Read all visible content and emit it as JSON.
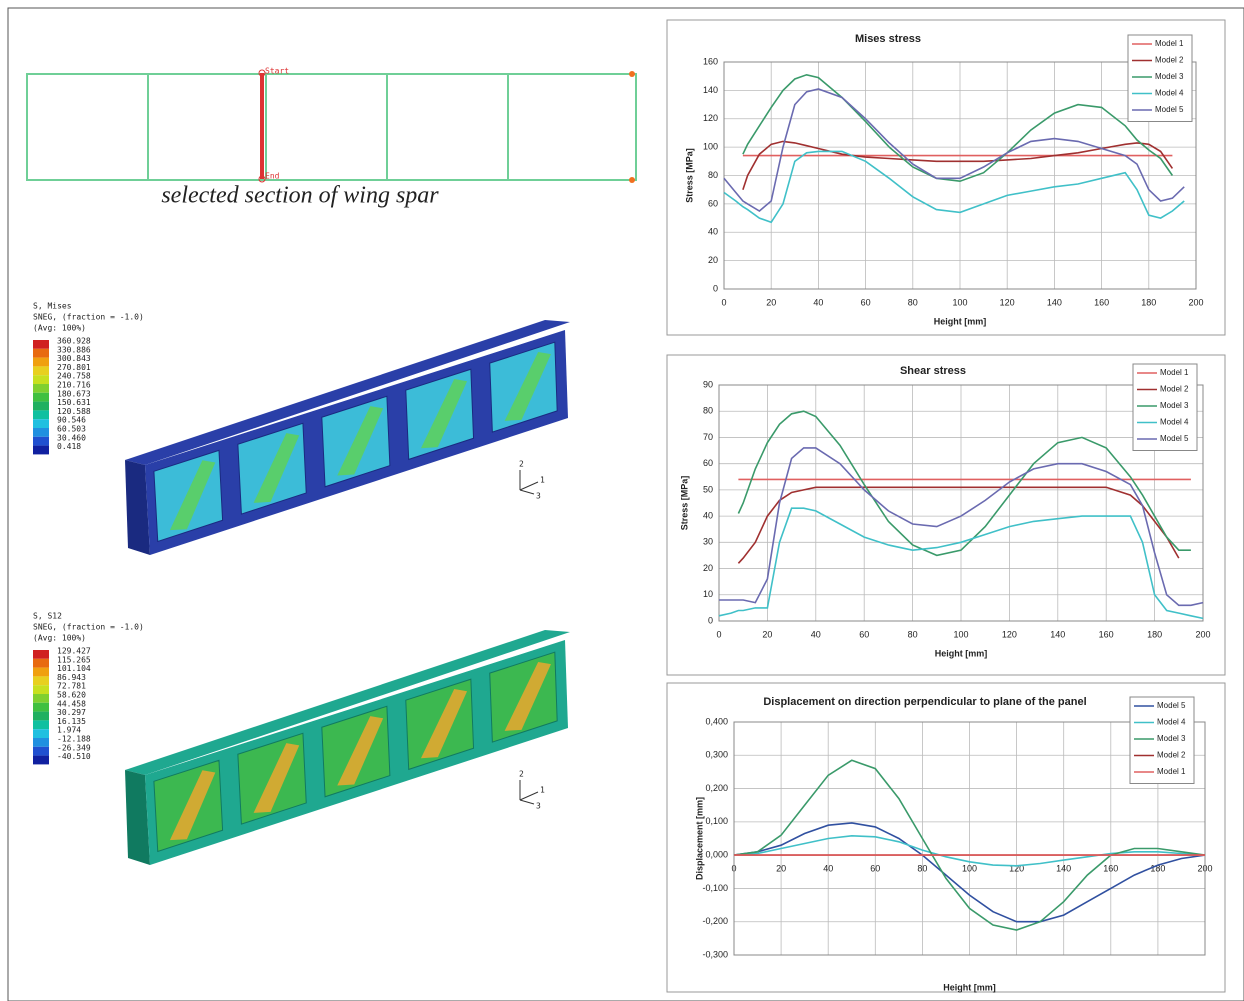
{
  "diagram": {
    "caption": "selected section of wing spar",
    "start_label": "Start",
    "end_label": "End"
  },
  "contours": [
    {
      "title": [
        "S, Mises",
        "SNEG, (fraction = -1.0)",
        "(Avg: 100%)"
      ],
      "levels": [
        "360.928",
        "330.886",
        "300.843",
        "270.801",
        "240.758",
        "210.716",
        "180.673",
        "150.631",
        "120.588",
        "90.546",
        "60.503",
        "30.460",
        "0.418"
      ],
      "axes": [
        "2",
        "1",
        "3"
      ]
    },
    {
      "title": [
        "S, S12",
        "SNEG, (fraction = -1.0)",
        "(Avg: 100%)"
      ],
      "levels": [
        "129.427",
        "115.265",
        "101.104",
        "86.943",
        "72.781",
        "58.620",
        "44.458",
        "30.297",
        "16.135",
        "1.974",
        "-12.188",
        "-26.349",
        "-40.510"
      ],
      "axes": [
        "2",
        "1",
        "3"
      ]
    }
  ],
  "chart_data": [
    {
      "type": "line",
      "title": "Mises stress",
      "xlabel": "Height [mm]",
      "ylabel": "Stress [MPa]",
      "x": [
        0,
        5,
        8,
        10,
        15,
        20,
        25,
        30,
        35,
        40,
        50,
        60,
        70,
        80,
        90,
        100,
        110,
        120,
        130,
        140,
        150,
        160,
        170,
        175,
        180,
        185,
        190,
        195
      ],
      "series": [
        {
          "name": "Model 1",
          "color": "#e06060",
          "values": [
            null,
            null,
            94,
            94,
            94,
            94,
            94,
            94,
            94,
            94,
            94,
            94,
            94,
            94,
            94,
            94,
            94,
            94,
            94,
            94,
            94,
            94,
            94,
            94,
            94,
            94,
            94,
            null
          ]
        },
        {
          "name": "Model 2",
          "color": "#a03030",
          "values": [
            null,
            null,
            70,
            80,
            95,
            102,
            104,
            103,
            101,
            99,
            95,
            93,
            92,
            91,
            90,
            90,
            90,
            91,
            92,
            94,
            96,
            99,
            102,
            103,
            102,
            97,
            85,
            null
          ]
        },
        {
          "name": "Model 3",
          "color": "#3a9a6a",
          "values": [
            null,
            null,
            95,
            102,
            115,
            128,
            140,
            148,
            151,
            149,
            135,
            118,
            100,
            86,
            78,
            76,
            82,
            96,
            112,
            124,
            130,
            128,
            115,
            105,
            98,
            92,
            80,
            null
          ]
        },
        {
          "name": "Model 4",
          "color": "#40c0c8",
          "values": [
            68,
            62,
            58,
            56,
            50,
            47,
            60,
            90,
            96,
            97,
            97,
            90,
            78,
            65,
            56,
            54,
            60,
            66,
            69,
            72,
            74,
            78,
            82,
            70,
            52,
            50,
            55,
            62
          ]
        },
        {
          "name": "Model 5",
          "color": "#6a6ab0",
          "values": [
            78,
            68,
            62,
            60,
            55,
            62,
            100,
            130,
            139,
            141,
            135,
            120,
            103,
            88,
            78,
            78,
            86,
            96,
            104,
            106,
            104,
            99,
            94,
            88,
            70,
            62,
            64,
            72
          ]
        }
      ],
      "xlim": [
        0,
        200
      ],
      "xticks": [
        0,
        20,
        40,
        60,
        80,
        100,
        120,
        140,
        160,
        180,
        200
      ],
      "ylim": [
        0,
        160
      ],
      "yticks": [
        0,
        20,
        40,
        60,
        80,
        100,
        120,
        140,
        160
      ],
      "grid": true,
      "legend": "upper right"
    },
    {
      "type": "line",
      "title": "Shear stress",
      "xlabel": "Height [mm]",
      "ylabel": "Stress [MPa]",
      "x": [
        0,
        5,
        8,
        10,
        15,
        20,
        25,
        30,
        35,
        40,
        50,
        60,
        70,
        80,
        90,
        100,
        110,
        120,
        130,
        140,
        150,
        160,
        170,
        175,
        180,
        185,
        190,
        195,
        200
      ],
      "series": [
        {
          "name": "Model 1",
          "color": "#e06060",
          "values": [
            null,
            null,
            54,
            54,
            54,
            54,
            54,
            54,
            54,
            54,
            54,
            54,
            54,
            54,
            54,
            54,
            54,
            54,
            54,
            54,
            54,
            54,
            54,
            54,
            54,
            54,
            54,
            54,
            null
          ]
        },
        {
          "name": "Model 2",
          "color": "#a03030",
          "values": [
            null,
            null,
            22,
            24,
            30,
            40,
            46,
            49,
            50,
            51,
            51,
            51,
            51,
            51,
            51,
            51,
            51,
            51,
            51,
            51,
            51,
            51,
            48,
            44,
            38,
            32,
            24,
            null,
            null
          ]
        },
        {
          "name": "Model 3",
          "color": "#3a9a6a",
          "values": [
            null,
            null,
            41,
            45,
            58,
            68,
            75,
            79,
            80,
            78,
            67,
            52,
            38,
            29,
            25,
            27,
            36,
            48,
            60,
            68,
            70,
            66,
            55,
            48,
            40,
            32,
            27,
            27,
            null
          ]
        },
        {
          "name": "Model 4",
          "color": "#40c0c8",
          "values": [
            2,
            3,
            4,
            4,
            5,
            5,
            30,
            43,
            43,
            42,
            37,
            32,
            29,
            27,
            28,
            30,
            33,
            36,
            38,
            39,
            40,
            40,
            40,
            30,
            10,
            4,
            3,
            2,
            1
          ]
        },
        {
          "name": "Model 5",
          "color": "#6a6ab0",
          "values": [
            8,
            8,
            8,
            8,
            7,
            16,
            45,
            62,
            66,
            66,
            60,
            50,
            42,
            37,
            36,
            40,
            46,
            53,
            58,
            60,
            60,
            57,
            52,
            44,
            26,
            10,
            6,
            6,
            7
          ]
        }
      ],
      "xlim": [
        0,
        200
      ],
      "xticks": [
        0,
        20,
        40,
        60,
        80,
        100,
        120,
        140,
        160,
        180,
        200
      ],
      "ylim": [
        0,
        90
      ],
      "yticks": [
        0,
        10,
        20,
        30,
        40,
        50,
        60,
        70,
        80,
        90
      ],
      "grid": true,
      "legend": "upper right"
    },
    {
      "type": "line",
      "title": "Displacement on direction perpendicular to plane of  the panel",
      "xlabel": "Height [mm]",
      "ylabel": "Displacement [mm]",
      "x": [
        0,
        10,
        20,
        30,
        40,
        50,
        60,
        70,
        80,
        90,
        100,
        110,
        120,
        130,
        140,
        150,
        160,
        170,
        180,
        190,
        200
      ],
      "series": [
        {
          "name": "Model 5",
          "color": "#3050a0",
          "values": [
            0,
            0.01,
            0.03,
            0.065,
            0.09,
            0.097,
            0.085,
            0.05,
            0,
            -0.06,
            -0.12,
            -0.17,
            -0.2,
            -0.2,
            -0.18,
            -0.14,
            -0.1,
            -0.06,
            -0.03,
            -0.01,
            0
          ]
        },
        {
          "name": "Model 4",
          "color": "#40c0c8",
          "values": [
            0,
            0.005,
            0.02,
            0.035,
            0.05,
            0.058,
            0.055,
            0.04,
            0.015,
            -0.005,
            -0.02,
            -0.03,
            -0.032,
            -0.025,
            -0.015,
            -0.005,
            0.005,
            0.01,
            0.01,
            0.005,
            0
          ]
        },
        {
          "name": "Model 3",
          "color": "#3a9a6a",
          "values": [
            0,
            0.01,
            0.06,
            0.15,
            0.24,
            0.285,
            0.26,
            0.17,
            0.05,
            -0.07,
            -0.16,
            -0.21,
            -0.225,
            -0.2,
            -0.14,
            -0.06,
            0,
            0.02,
            0.02,
            0.01,
            0
          ]
        },
        {
          "name": "Model 2",
          "color": "#a03030",
          "values": [
            0,
            0,
            0,
            0,
            0,
            0,
            0,
            0,
            0,
            0,
            0,
            0,
            0,
            0,
            0,
            0,
            0,
            0,
            0,
            0,
            0
          ]
        },
        {
          "name": "Model 1",
          "color": "#e06060",
          "values": [
            0,
            0,
            0,
            0,
            0,
            0,
            0,
            0,
            0,
            0,
            0,
            0,
            0,
            0,
            0,
            0,
            0,
            0,
            0,
            0,
            0
          ]
        }
      ],
      "xlim": [
        0,
        200
      ],
      "xticks": [
        0,
        20,
        40,
        60,
        80,
        100,
        120,
        140,
        160,
        180,
        200
      ],
      "ylim": [
        -0.3,
        0.4
      ],
      "yticks": [
        {
          "value": -0.3,
          "label": "-0,300"
        },
        {
          "value": -0.2,
          "label": "-0,200"
        },
        {
          "value": -0.1,
          "label": "-0,100"
        },
        {
          "value": 0,
          "label": "0,000"
        },
        {
          "value": 0.1,
          "label": "0,100"
        },
        {
          "value": 0.2,
          "label": "0,200"
        },
        {
          "value": 0.3,
          "label": "0,300"
        },
        {
          "value": 0.4,
          "label": "0,400"
        }
      ],
      "grid": true,
      "legend": "upper right"
    }
  ]
}
